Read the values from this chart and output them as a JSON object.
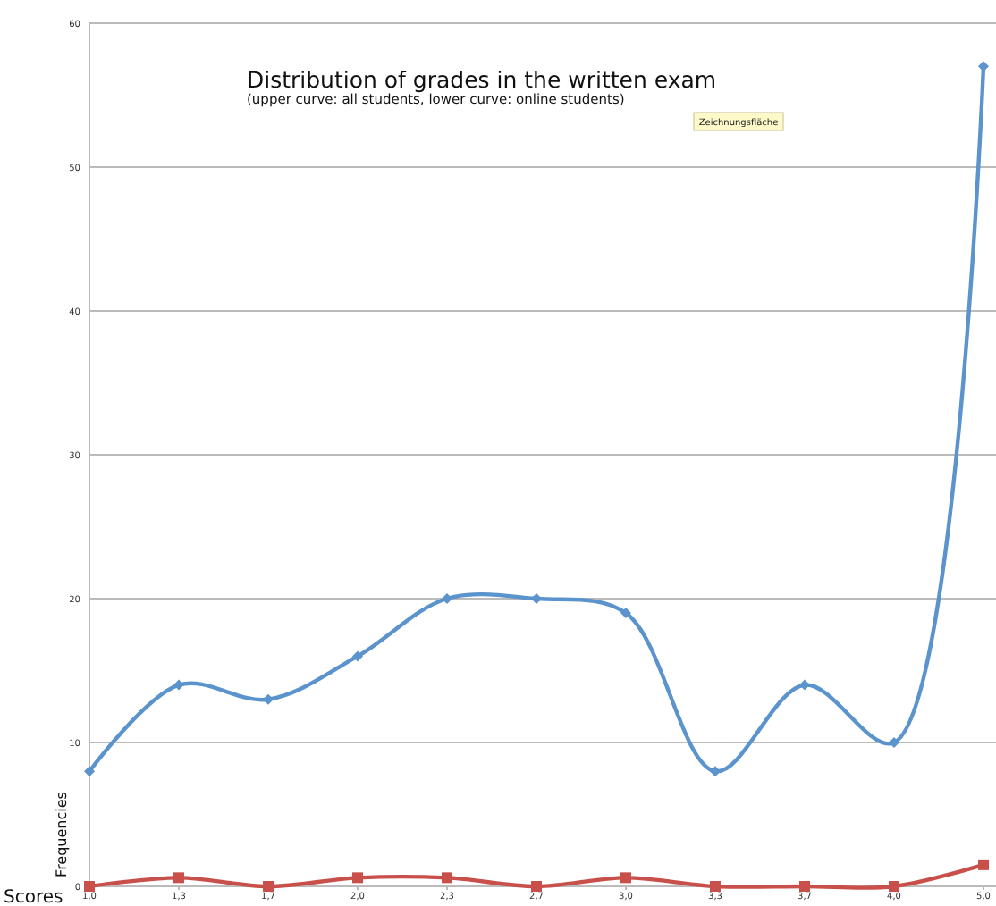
{
  "chart_data": {
    "type": "line",
    "title": "Distribution of grades in the written exam",
    "subtitle": "(upper curve: all students, lower curve: online students)",
    "xlabel": "Scores",
    "ylabel": "Frequencies",
    "annotations": [
      "Zeichnungsfläche"
    ],
    "categories": [
      "1,0",
      "1,3",
      "1,7",
      "2,0",
      "2,3",
      "2,7",
      "3,0",
      "3,3",
      "3,7",
      "4,0",
      "5,0"
    ],
    "ylim": [
      0,
      60
    ],
    "yticks": [
      0,
      10,
      20,
      30,
      40,
      50,
      60
    ],
    "grid": "y",
    "series": [
      {
        "color": "#5b93cc",
        "marker": "diamond",
        "values": [
          8,
          14,
          13,
          16,
          20,
          20,
          19,
          8,
          14,
          10,
          57
        ]
      },
      {
        "color": "#c9504a",
        "marker": "square",
        "values": [
          0,
          0.6,
          0,
          0.6,
          0.6,
          0,
          0.6,
          0,
          0,
          0,
          1.5
        ]
      }
    ]
  }
}
